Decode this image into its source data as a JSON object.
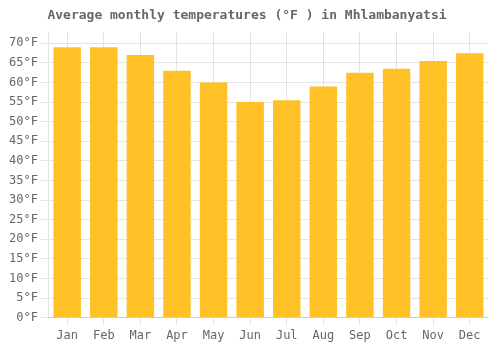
{
  "chart_data": {
    "type": "bar",
    "title": "Average monthly temperatures (°F ) in Mhlambanyatsi",
    "categories": [
      "Jan",
      "Feb",
      "Mar",
      "Apr",
      "May",
      "Jun",
      "Jul",
      "Aug",
      "Sep",
      "Oct",
      "Nov",
      "Dec"
    ],
    "values": [
      69,
      69,
      67,
      63,
      60,
      55,
      55.5,
      59,
      62.5,
      63.5,
      65.5,
      67.5
    ],
    "color": "#FFC125",
    "ylim": [
      0,
      73
    ],
    "yticks": [
      {
        "value": 0,
        "label": "0°F"
      },
      {
        "value": 5,
        "label": "5°F"
      },
      {
        "value": 10,
        "label": "10°F"
      },
      {
        "value": 15,
        "label": "15°F"
      },
      {
        "value": 20,
        "label": "20°F"
      },
      {
        "value": 25,
        "label": "25°F"
      },
      {
        "value": 30,
        "label": "30°F"
      },
      {
        "value": 35,
        "label": "35°F"
      },
      {
        "value": 40,
        "label": "40°F"
      },
      {
        "value": 45,
        "label": "45°F"
      },
      {
        "value": 50,
        "label": "50°F"
      },
      {
        "value": 55,
        "label": "55°F"
      },
      {
        "value": 60,
        "label": "60°F"
      },
      {
        "value": 65,
        "label": "65°F"
      },
      {
        "value": 70,
        "label": "70°F"
      }
    ],
    "grid": true
  }
}
